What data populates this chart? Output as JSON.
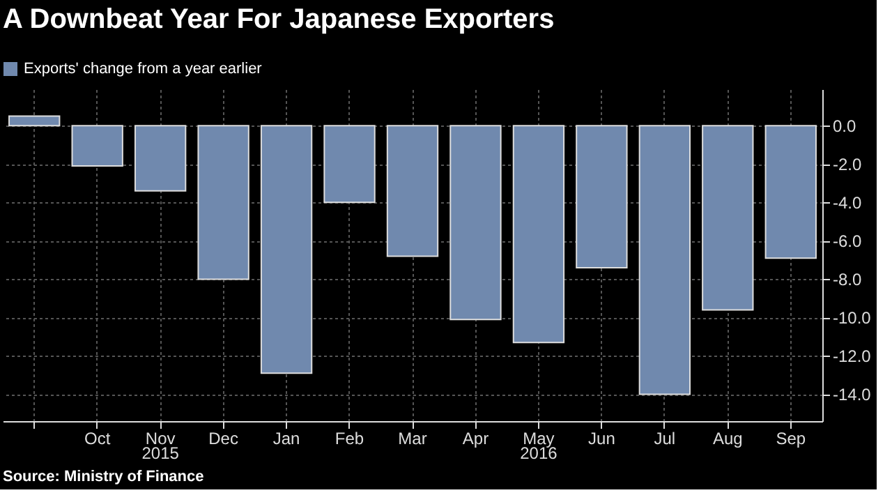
{
  "chart_data": {
    "type": "bar",
    "title": "A Downbeat Year For Japanese Exporters",
    "categories": [
      null,
      "Oct",
      "Nov",
      "Dec",
      "Jan",
      "Feb",
      "Mar",
      "Apr",
      "May",
      "Jun",
      "Jul",
      "Aug",
      "Sep"
    ],
    "series": [
      {
        "name": "Exports' change from a year earlier",
        "color": "#7089ae",
        "values": [
          0.5,
          -2.1,
          -3.4,
          -8.0,
          -12.9,
          -4.0,
          -6.8,
          -10.1,
          -11.3,
          -7.4,
          -14.0,
          -9.6,
          -6.9
        ]
      }
    ],
    "ylim": [
      -15.4,
      1.9
    ],
    "yticks": [
      {
        "value": 0,
        "label": "0.0"
      },
      {
        "value": -2,
        "label": "-2.0"
      },
      {
        "value": -4,
        "label": "-4.0"
      },
      {
        "value": -6,
        "label": "-6.0"
      },
      {
        "value": -8,
        "label": "-8.0"
      },
      {
        "value": -10,
        "label": "-10.0"
      },
      {
        "value": -12,
        "label": "-12.0"
      },
      {
        "value": -14,
        "label": "-14.0"
      }
    ],
    "grid": true,
    "legend": "top left",
    "annotations": [
      "2015",
      "2016",
      "Source: Ministry of Finance"
    ]
  }
}
